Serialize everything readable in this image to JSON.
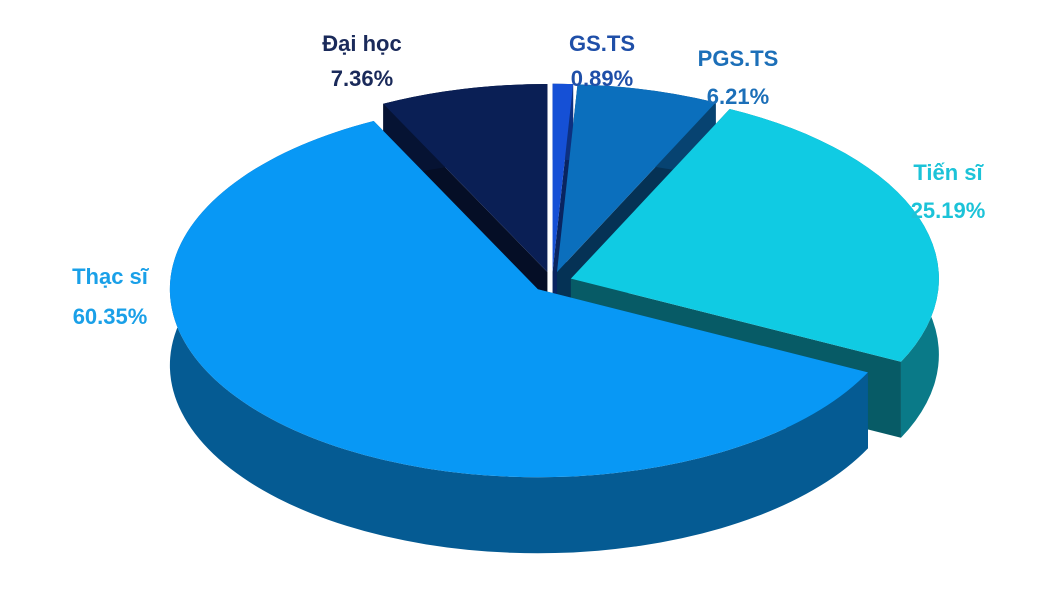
{
  "chart_data": {
    "type": "pie3d",
    "categories": [
      "GS.TS",
      "PGS.TS",
      "Tiến sĩ",
      "Thạc sĩ",
      "Đại học"
    ],
    "values": [
      0.89,
      6.21,
      25.19,
      60.35,
      7.36
    ],
    "value_labels": [
      "0.89%",
      "6.21%",
      "25.19%",
      "60.35%",
      "7.36%"
    ],
    "colors": [
      "#1550d6",
      "#0b6fbd",
      "#10cbe3",
      "#0898f5",
      "#0a1f55"
    ],
    "label_colors": [
      "#1f4fa8",
      "#1c6fb8",
      "#1cc3d8",
      "#1aa0e8",
      "#1a2a5a"
    ]
  }
}
